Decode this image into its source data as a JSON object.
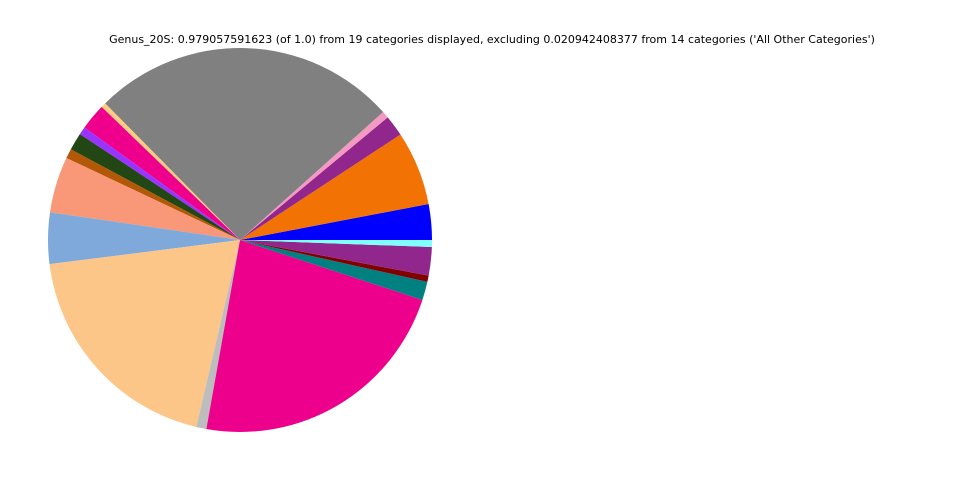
{
  "chart_data": {
    "type": "pie",
    "title": "Genus_20S: 0.979057591623 (of 1.0) from 19 categories displayed, excluding 0.020942408377 from 14 categories ('All Other Categories')",
    "values": [
      0.0294,
      0.0612,
      0.0174,
      0.0057,
      0.2524,
      0.0041,
      0.0218,
      0.0065,
      0.0144,
      0.0079,
      0.0462,
      0.0422,
      0.1893,
      0.0084,
      0.2227,
      0.0152,
      0.0052,
      0.0234,
      0.0057
    ],
    "colors": [
      "#0000ff",
      "#f27304",
      "#91278d",
      "#f49ac2",
      "#808080",
      "#ffcc80",
      "#ee008c",
      "#9933ff",
      "#234714",
      "#b35806",
      "#f89878",
      "#7fa9da",
      "#fdc689",
      "#bdbdbd",
      "#ec008c",
      "#008080",
      "#800000",
      "#91278d",
      "#7fffff"
    ]
  }
}
